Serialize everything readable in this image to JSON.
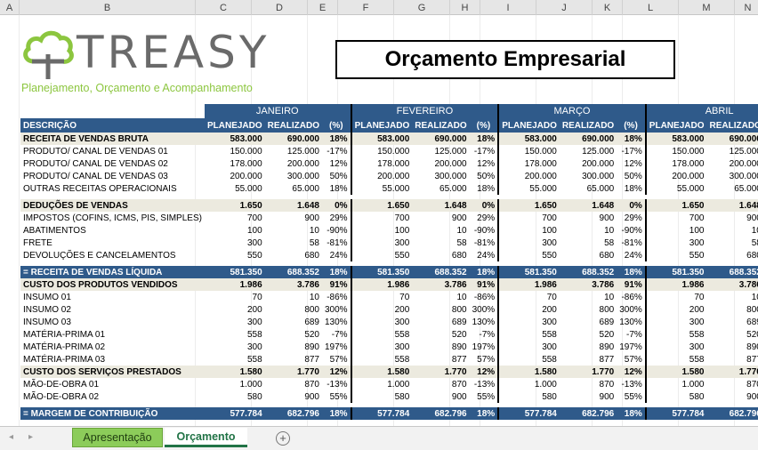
{
  "columns": [
    "A",
    "B",
    "C",
    "D",
    "E",
    "F",
    "G",
    "H",
    "I",
    "J",
    "K",
    "L",
    "M",
    "N"
  ],
  "logo": {
    "word": "TREASY",
    "tagline": "Planejamento, Orçamento e Acompanhamento"
  },
  "title": "Orçamento Empresarial",
  "table": {
    "months": [
      "JANEIRO",
      "FEVEREIRO",
      "MARÇO",
      "ABRIL"
    ],
    "desc_header": "DESCRIÇÃO",
    "sub_headers": [
      "PLANEJADO",
      "REALIZADO",
      "(%)"
    ],
    "rows": [
      {
        "type": "sec",
        "label": "RECEITA DE VENDAS BRUTA",
        "v": [
          "583.000",
          "690.000",
          "18%"
        ]
      },
      {
        "type": "item",
        "label": "PRODUTO/ CANAL DE VENDAS 01",
        "v": [
          "150.000",
          "125.000",
          "-17%"
        ]
      },
      {
        "type": "item",
        "label": "PRODUTO/ CANAL DE VENDAS 02",
        "v": [
          "178.000",
          "200.000",
          "12%"
        ]
      },
      {
        "type": "item",
        "label": "PRODUTO/ CANAL DE VENDAS 03",
        "v": [
          "200.000",
          "300.000",
          "50%"
        ]
      },
      {
        "type": "item",
        "label": "OUTRAS RECEITAS OPERACIONAIS",
        "v": [
          "55.000",
          "65.000",
          "18%"
        ]
      },
      {
        "type": "gap"
      },
      {
        "type": "sec",
        "label": "DEDUÇÕES DE VENDAS",
        "v": [
          "1.650",
          "1.648",
          "0%"
        ]
      },
      {
        "type": "item",
        "label": "IMPOSTOS (COFINS, ICMS, PIS, SIMPLES)",
        "v": [
          "700",
          "900",
          "29%"
        ]
      },
      {
        "type": "item",
        "label": "ABATIMENTOS",
        "v": [
          "100",
          "10",
          "-90%"
        ]
      },
      {
        "type": "item",
        "label": "FRETE",
        "v": [
          "300",
          "58",
          "-81%"
        ]
      },
      {
        "type": "item",
        "label": "DEVOLUÇÕES E CANCELAMENTOS",
        "v": [
          "550",
          "680",
          "24%"
        ]
      },
      {
        "type": "gap"
      },
      {
        "type": "band",
        "label": "= RECEITA DE VENDAS LÍQUIDA",
        "v": [
          "581.350",
          "688.352",
          "18%"
        ]
      },
      {
        "type": "sec",
        "label": "CUSTO DOS PRODUTOS VENDIDOS",
        "v": [
          "1.986",
          "3.786",
          "91%"
        ]
      },
      {
        "type": "item",
        "label": "INSUMO 01",
        "v": [
          "70",
          "10",
          "-86%"
        ]
      },
      {
        "type": "item",
        "label": "INSUMO 02",
        "v": [
          "200",
          "800",
          "300%"
        ]
      },
      {
        "type": "item",
        "label": "INSUMO 03",
        "v": [
          "300",
          "689",
          "130%"
        ]
      },
      {
        "type": "item",
        "label": "MATÉRIA-PRIMA 01",
        "v": [
          "558",
          "520",
          "-7%"
        ]
      },
      {
        "type": "item",
        "label": "MATÉRIA-PRIMA 02",
        "v": [
          "300",
          "890",
          "197%"
        ]
      },
      {
        "type": "item",
        "label": "MATÉRIA-PRIMA 03",
        "v": [
          "558",
          "877",
          "57%"
        ]
      },
      {
        "type": "sec",
        "label": "CUSTO DOS SERVIÇOS PRESTADOS",
        "v": [
          "1.580",
          "1.770",
          "12%"
        ]
      },
      {
        "type": "item",
        "label": "MÃO-DE-OBRA 01",
        "v": [
          "1.000",
          "870",
          "-13%"
        ]
      },
      {
        "type": "item",
        "label": "MÃO-DE-OBRA 02",
        "v": [
          "580",
          "900",
          "55%"
        ]
      },
      {
        "type": "gap"
      },
      {
        "type": "band",
        "label": "= MARGEM DE CONTRIBUIÇÃO",
        "v": [
          "577.784",
          "682.796",
          "18%"
        ]
      }
    ]
  },
  "tabs": {
    "nav_prev": "◂",
    "nav_next": "▸",
    "sheet1": "Apresentação",
    "sheet2": "Orçamento",
    "add": "+"
  },
  "colors": {
    "header_blue": "#2f5a8a",
    "section_bg": "#eceadf",
    "tab_green": "#8ccc5a",
    "logo_green": "#8cc63f"
  }
}
